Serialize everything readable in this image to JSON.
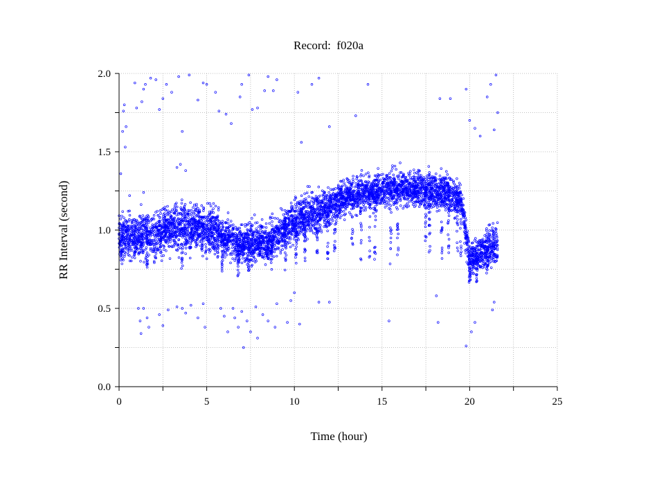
{
  "chart_data": {
    "type": "scatter",
    "title": "Record:  f020a",
    "xlabel": "Time (hour)",
    "ylabel": "RR Interval (second)",
    "xlim": [
      0,
      25
    ],
    "ylim": [
      0.0,
      2.0
    ],
    "xticks": [
      "0",
      "5",
      "10",
      "15",
      "20",
      "25"
    ],
    "yticks": [
      "0.0",
      "0.5",
      "1.0",
      "1.5",
      "2.0"
    ],
    "grid": true,
    "marker": "open-circle",
    "series_color": "#0000ff",
    "series": [
      {
        "points_note_free": true,
        "band": [
          [
            0.0,
            0.98,
            0.11
          ],
          [
            0.5,
            0.95,
            0.12
          ],
          [
            1.0,
            0.95,
            0.12
          ],
          [
            1.5,
            0.97,
            0.12
          ],
          [
            2.0,
            0.96,
            0.12
          ],
          [
            2.5,
            1.0,
            0.12
          ],
          [
            3.0,
            1.0,
            0.12
          ],
          [
            3.5,
            1.02,
            0.12
          ],
          [
            4.0,
            1.0,
            0.12
          ],
          [
            4.5,
            1.02,
            0.12
          ],
          [
            5.0,
            1.0,
            0.12
          ],
          [
            5.5,
            1.0,
            0.12
          ],
          [
            6.0,
            0.95,
            0.1
          ],
          [
            6.5,
            0.93,
            0.1
          ],
          [
            7.0,
            0.9,
            0.1
          ],
          [
            7.5,
            0.92,
            0.1
          ],
          [
            8.0,
            0.93,
            0.1
          ],
          [
            8.5,
            0.92,
            0.1
          ],
          [
            9.0,
            0.96,
            0.1
          ],
          [
            9.5,
            1.02,
            0.11
          ],
          [
            10.0,
            1.05,
            0.11
          ],
          [
            10.5,
            1.08,
            0.11
          ],
          [
            11.0,
            1.1,
            0.12
          ],
          [
            11.5,
            1.12,
            0.11
          ],
          [
            12.0,
            1.15,
            0.1
          ],
          [
            12.5,
            1.18,
            0.1
          ],
          [
            13.0,
            1.22,
            0.09
          ],
          [
            13.5,
            1.22,
            0.1
          ],
          [
            14.0,
            1.24,
            0.09
          ],
          [
            14.5,
            1.24,
            0.09
          ],
          [
            15.0,
            1.25,
            0.09
          ],
          [
            15.5,
            1.26,
            0.09
          ],
          [
            16.0,
            1.27,
            0.09
          ],
          [
            16.5,
            1.27,
            0.09
          ],
          [
            17.0,
            1.26,
            0.09
          ],
          [
            17.5,
            1.25,
            0.1
          ],
          [
            18.0,
            1.25,
            0.1
          ],
          [
            18.5,
            1.25,
            0.1
          ],
          [
            19.0,
            1.22,
            0.1
          ],
          [
            19.5,
            1.2,
            0.1
          ],
          [
            20.0,
            0.8,
            0.1
          ],
          [
            20.5,
            0.85,
            0.1
          ],
          [
            21.0,
            0.88,
            0.11
          ],
          [
            21.6,
            0.9,
            0.12
          ]
        ],
        "outliers": [
          [
            0.1,
            1.36
          ],
          [
            0.2,
            1.63
          ],
          [
            0.25,
            1.76
          ],
          [
            0.3,
            1.8
          ],
          [
            0.35,
            1.53
          ],
          [
            0.4,
            1.66
          ],
          [
            0.9,
            1.94
          ],
          [
            1.0,
            1.78
          ],
          [
            1.3,
            1.82
          ],
          [
            1.4,
            1.9
          ],
          [
            1.5,
            1.93
          ],
          [
            1.8,
            1.97
          ],
          [
            2.1,
            1.96
          ],
          [
            2.3,
            1.77
          ],
          [
            2.5,
            1.84
          ],
          [
            2.7,
            1.93
          ],
          [
            3.0,
            1.88
          ],
          [
            3.4,
            1.98
          ],
          [
            3.6,
            1.63
          ],
          [
            4.0,
            1.99
          ],
          [
            4.5,
            1.83
          ],
          [
            4.8,
            1.94
          ],
          [
            5.0,
            1.93
          ],
          [
            5.5,
            1.88
          ],
          [
            5.7,
            1.76
          ],
          [
            6.1,
            1.74
          ],
          [
            6.4,
            1.68
          ],
          [
            6.9,
            1.85
          ],
          [
            7.0,
            1.93
          ],
          [
            7.4,
            1.99
          ],
          [
            7.6,
            1.77
          ],
          [
            7.9,
            1.78
          ],
          [
            8.3,
            1.89
          ],
          [
            8.5,
            1.98
          ],
          [
            8.8,
            1.89
          ],
          [
            9.0,
            1.96
          ],
          [
            10.2,
            1.88
          ],
          [
            11.0,
            1.93
          ],
          [
            11.4,
            1.97
          ],
          [
            12.0,
            1.66
          ],
          [
            13.5,
            1.73
          ],
          [
            14.2,
            1.93
          ],
          [
            18.3,
            1.84
          ],
          [
            18.9,
            1.84
          ],
          [
            19.8,
            1.9
          ],
          [
            20.0,
            1.7
          ],
          [
            20.3,
            1.65
          ],
          [
            20.6,
            1.6
          ],
          [
            21.0,
            1.85
          ],
          [
            21.2,
            1.93
          ],
          [
            21.5,
            1.99
          ],
          [
            21.6,
            1.75
          ],
          [
            21.4,
            1.64
          ],
          [
            3.3,
            1.4
          ],
          [
            3.5,
            1.42
          ],
          [
            3.8,
            1.38
          ],
          [
            1.4,
            1.24
          ],
          [
            0.6,
            1.22
          ],
          [
            10.4,
            1.56
          ],
          [
            1.1,
            0.5
          ],
          [
            1.2,
            0.42
          ],
          [
            1.25,
            0.34
          ],
          [
            1.4,
            0.5
          ],
          [
            1.6,
            0.44
          ],
          [
            1.7,
            0.38
          ],
          [
            2.3,
            0.46
          ],
          [
            2.5,
            0.39
          ],
          [
            2.8,
            0.49
          ],
          [
            3.3,
            0.51
          ],
          [
            3.6,
            0.5
          ],
          [
            3.8,
            0.47
          ],
          [
            4.1,
            0.52
          ],
          [
            4.5,
            0.44
          ],
          [
            4.8,
            0.53
          ],
          [
            4.9,
            0.38
          ],
          [
            5.8,
            0.5
          ],
          [
            6.0,
            0.45
          ],
          [
            6.2,
            0.35
          ],
          [
            6.5,
            0.5
          ],
          [
            6.6,
            0.44
          ],
          [
            6.8,
            0.38
          ],
          [
            7.0,
            0.48
          ],
          [
            7.1,
            0.25
          ],
          [
            7.3,
            0.42
          ],
          [
            7.5,
            0.35
          ],
          [
            7.8,
            0.51
          ],
          [
            7.9,
            0.31
          ],
          [
            8.2,
            0.46
          ],
          [
            8.5,
            0.42
          ],
          [
            8.9,
            0.38
          ],
          [
            9.0,
            0.53
          ],
          [
            9.6,
            0.41
          ],
          [
            9.8,
            0.55
          ],
          [
            10.0,
            0.6
          ],
          [
            10.3,
            0.4
          ],
          [
            11.4,
            0.54
          ],
          [
            12.0,
            0.54
          ],
          [
            15.4,
            0.42
          ],
          [
            18.2,
            0.41
          ],
          [
            18.1,
            0.58
          ],
          [
            19.8,
            0.26
          ],
          [
            20.1,
            0.35
          ],
          [
            20.3,
            0.41
          ],
          [
            21.3,
            0.49
          ],
          [
            21.4,
            0.54
          ]
        ],
        "dips": [
          [
            0.15,
            0.78
          ],
          [
            1.6,
            0.75
          ],
          [
            2.4,
            0.73
          ],
          [
            3.6,
            0.72
          ],
          [
            5.9,
            0.73
          ],
          [
            6.8,
            0.7
          ],
          [
            7.4,
            0.72
          ],
          [
            8.7,
            0.74
          ],
          [
            9.5,
            0.74
          ],
          [
            10.1,
            0.77
          ],
          [
            10.6,
            0.8
          ],
          [
            11.3,
            0.83
          ],
          [
            11.9,
            0.8
          ],
          [
            12.3,
            0.85
          ],
          [
            13.3,
            0.85
          ],
          [
            13.8,
            0.8
          ],
          [
            14.3,
            0.82
          ],
          [
            14.6,
            0.8
          ],
          [
            15.5,
            0.78
          ],
          [
            15.9,
            0.83
          ],
          [
            17.5,
            0.9
          ],
          [
            17.7,
            0.85
          ],
          [
            18.4,
            0.78
          ],
          [
            18.8,
            0.83
          ],
          [
            19.3,
            0.85
          ],
          [
            19.5,
            0.76
          ],
          [
            20.0,
            0.66
          ],
          [
            20.4,
            0.67
          ],
          [
            21.0,
            0.72
          ]
        ]
      }
    ]
  }
}
